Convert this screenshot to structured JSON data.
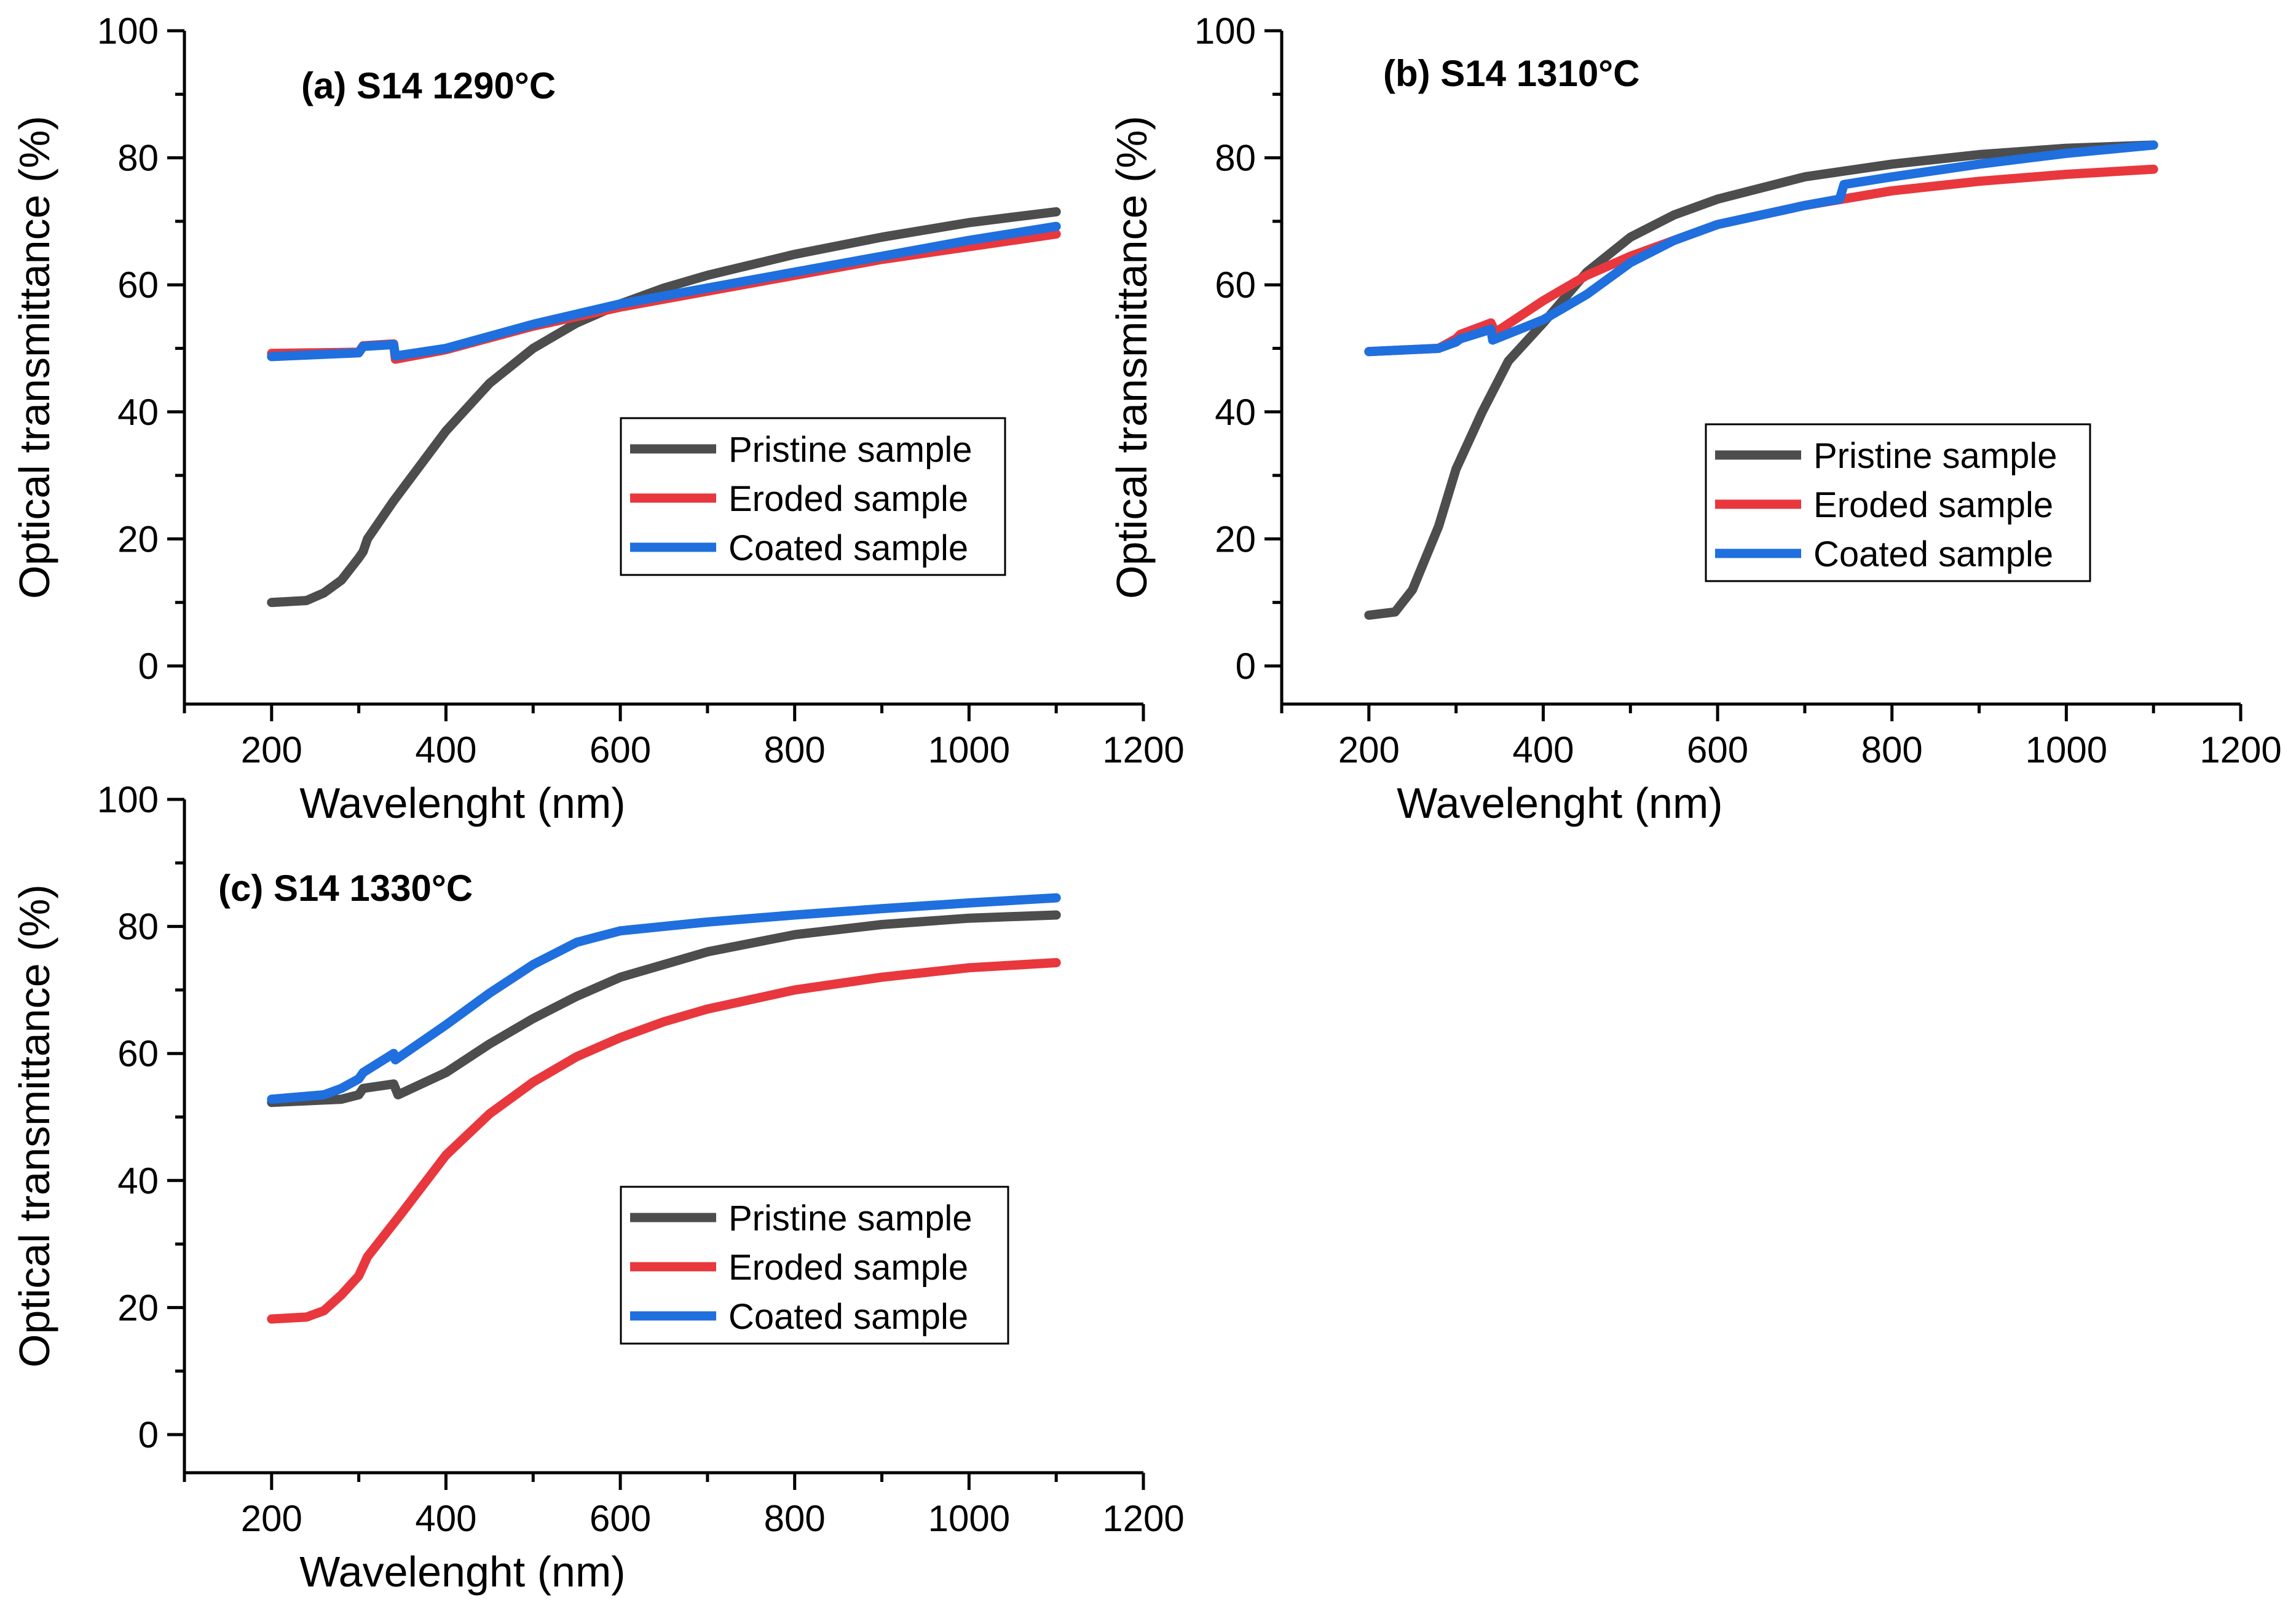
{
  "colors": {
    "pristine": "#4d4d4d",
    "eroded": "#e8383d",
    "coated": "#1f6fde"
  },
  "chart_data": [
    {
      "type": "line",
      "title": "(a) S14 1290°C",
      "xlabel": "Wavelenght (nm)",
      "ylabel": "Optical transmittance (%)",
      "xlim": [
        100,
        1200
      ],
      "ylim": [
        -6,
        100
      ],
      "xticks": [
        200,
        400,
        600,
        800,
        1000,
        1200
      ],
      "yticks": [
        0,
        20,
        40,
        60,
        80,
        100
      ],
      "legend_position": "center-right",
      "series": [
        {
          "name": "Pristine sample",
          "color_key": "pristine",
          "x": [
            200,
            240,
            260,
            280,
            300,
            305,
            310,
            340,
            400,
            450,
            500,
            550,
            600,
            650,
            700,
            800,
            900,
            1000,
            1100
          ],
          "y": [
            10,
            10.3,
            11.5,
            13.5,
            17,
            18,
            20,
            26,
            37,
            44.5,
            50,
            54,
            57,
            59.5,
            61.5,
            64.8,
            67.5,
            69.8,
            71.5
          ]
        },
        {
          "name": "Eroded sample",
          "color_key": "eroded",
          "x": [
            200,
            300,
            305,
            340,
            342,
            400,
            500,
            600,
            700,
            800,
            900,
            1000,
            1100
          ],
          "y": [
            49.2,
            49.4,
            50.4,
            50.7,
            48.3,
            49.8,
            53.5,
            56.5,
            59,
            61.5,
            64,
            66,
            68
          ]
        },
        {
          "name": "Coated sample",
          "color_key": "coated",
          "x": [
            200,
            300,
            305,
            340,
            342,
            400,
            500,
            600,
            700,
            800,
            900,
            1000,
            1100
          ],
          "y": [
            48.7,
            49.3,
            50.3,
            50.6,
            48.8,
            50,
            53.8,
            57,
            59.5,
            62,
            64.5,
            67,
            69.2
          ]
        }
      ]
    },
    {
      "type": "line",
      "title": "(b) S14 1310°C",
      "xlabel": "Wavelenght (nm)",
      "ylabel": "Optical transmittance (%)",
      "xlim": [
        100,
        1200
      ],
      "ylim": [
        -6,
        100
      ],
      "xticks": [
        200,
        400,
        600,
        800,
        1000,
        1200
      ],
      "yticks": [
        0,
        20,
        40,
        60,
        80,
        100
      ],
      "legend_position": "center-right",
      "series": [
        {
          "name": "Pristine sample",
          "color_key": "pristine",
          "x": [
            200,
            230,
            250,
            280,
            300,
            330,
            360,
            400,
            450,
            500,
            550,
            600,
            700,
            800,
            900,
            1000,
            1100
          ],
          "y": [
            8,
            8.5,
            12,
            22,
            31,
            40,
            48,
            54,
            62,
            67.5,
            71,
            73.5,
            77,
            79,
            80.5,
            81.5,
            82
          ]
        },
        {
          "name": "Eroded sample",
          "color_key": "eroded",
          "x": [
            200,
            280,
            300,
            305,
            340,
            345,
            400,
            450,
            500,
            600,
            700,
            800,
            900,
            1000,
            1100
          ],
          "y": [
            49.5,
            50,
            51.5,
            52.2,
            54,
            52.5,
            57.5,
            61.5,
            64.5,
            69.5,
            72.5,
            74.8,
            76.3,
            77.4,
            78.2
          ]
        },
        {
          "name": "Coated sample",
          "color_key": "coated",
          "x": [
            200,
            280,
            300,
            305,
            340,
            342,
            400,
            450,
            500,
            550,
            600,
            700,
            740,
            745,
            800,
            900,
            1000,
            1100
          ],
          "y": [
            49.5,
            50,
            51,
            51.5,
            53,
            51.3,
            54.5,
            58.5,
            63.5,
            67,
            69.5,
            72.5,
            73.5,
            75.8,
            77,
            79,
            80.7,
            82
          ]
        }
      ]
    },
    {
      "type": "line",
      "title": "(c) S14 1330°C",
      "xlabel": "Wavelenght (nm)",
      "ylabel": "Optical transmittance (%)",
      "xlim": [
        100,
        1200
      ],
      "ylim": [
        -6,
        100
      ],
      "xticks": [
        200,
        400,
        600,
        800,
        1000,
        1200
      ],
      "yticks": [
        0,
        20,
        40,
        60,
        80,
        100
      ],
      "legend_position": "center-right",
      "series": [
        {
          "name": "Pristine sample",
          "color_key": "pristine",
          "x": [
            200,
            280,
            300,
            305,
            340,
            345,
            400,
            450,
            500,
            550,
            600,
            700,
            800,
            900,
            1000,
            1100
          ],
          "y": [
            52.3,
            52.8,
            53.5,
            54.5,
            55.2,
            53.5,
            57,
            61.5,
            65.5,
            69,
            72,
            76,
            78.7,
            80.3,
            81.3,
            81.8
          ]
        },
        {
          "name": "Eroded sample",
          "color_key": "eroded",
          "x": [
            200,
            240,
            260,
            280,
            300,
            305,
            310,
            350,
            400,
            450,
            500,
            550,
            600,
            650,
            700,
            800,
            900,
            1000,
            1100
          ],
          "y": [
            18.2,
            18.5,
            19.5,
            22,
            25,
            26.5,
            28,
            35,
            44,
            50.5,
            55.5,
            59.5,
            62.5,
            65,
            67,
            70,
            72,
            73.5,
            74.3
          ]
        },
        {
          "name": "Coated sample",
          "color_key": "coated",
          "x": [
            200,
            260,
            280,
            300,
            305,
            340,
            342,
            400,
            450,
            500,
            550,
            600,
            650,
            700,
            800,
            900,
            1000,
            1100
          ],
          "y": [
            52.8,
            53.5,
            54.5,
            56,
            57,
            60,
            59,
            64.5,
            69.5,
            74,
            77.5,
            79.3,
            80,
            80.7,
            81.8,
            82.8,
            83.7,
            84.5
          ]
        }
      ]
    }
  ]
}
